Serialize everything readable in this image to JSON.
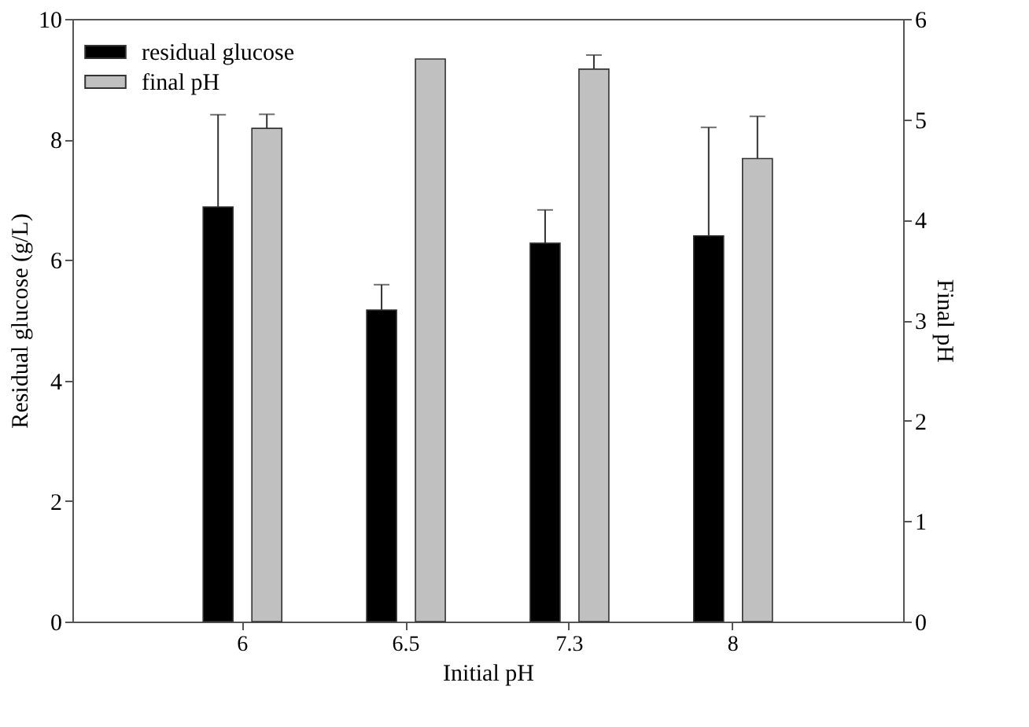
{
  "chart_data": {
    "type": "bar",
    "xlabel": "Initial pH",
    "ylabel": "Residual glucose (g/L)",
    "y2label": "Final pH",
    "categories": [
      "6",
      "6.5",
      "7.3",
      "8"
    ],
    "series": [
      {
        "name": "residual glucose",
        "color": "#000000",
        "values": [
          6.88,
          5.17,
          6.28,
          6.4
        ],
        "errors": [
          [
            6.88,
            8.41
          ],
          [
            5.17,
            5.59
          ],
          [
            6.28,
            6.83
          ],
          [
            6.4,
            8.2
          ]
        ]
      },
      {
        "name": "final pH",
        "color": "#c0c0c0",
        "axis": "y2",
        "values": [
          4.91,
          5.6,
          5.5,
          4.61
        ],
        "errors": [
          [
            4.91,
            5.05
          ],
          null,
          [
            5.5,
            5.64
          ],
          [
            4.61,
            5.03
          ]
        ]
      }
    ],
    "ylim": [
      0,
      10
    ],
    "yticks": [
      0,
      2,
      4,
      6,
      8,
      10
    ],
    "y2lim": [
      0,
      6
    ],
    "y2ticks": [
      0,
      1,
      2,
      3,
      4,
      5,
      6
    ],
    "grid": false,
    "legend": "top left"
  }
}
